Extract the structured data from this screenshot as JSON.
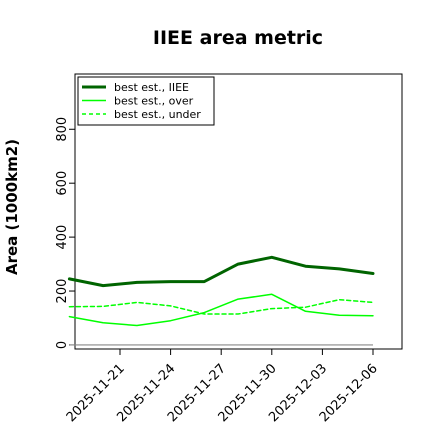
{
  "chart_data": {
    "type": "line",
    "title": "IIEE area metric",
    "xlabel": "",
    "ylabel": "Area (1000km2)",
    "x": [
      "2025-11-18",
      "2025-11-20",
      "2025-11-22",
      "2025-11-24",
      "2025-11-26",
      "2025-11-28",
      "2025-11-30",
      "2025-12-02",
      "2025-12-04",
      "2025-12-06"
    ],
    "x_ticks": [
      "2025-11-21",
      "2025-11-24",
      "2025-11-27",
      "2025-11-30",
      "2025-12-03",
      "2025-12-06"
    ],
    "ylim": [
      -15,
      1005
    ],
    "y_ticks": [
      0,
      200,
      400,
      600,
      800
    ],
    "y_tick_labels": [
      "0",
      "200",
      "400",
      "600",
      "800"
    ],
    "grid": false,
    "legend_position": "top-left",
    "series": [
      {
        "name": "best est., IIEE",
        "color": "#006400",
        "style": "solid",
        "width": 3,
        "values": [
          245,
          220,
          232,
          235,
          235,
          300,
          325,
          292,
          282,
          265
        ]
      },
      {
        "name": "best est., over",
        "color": "#00ff00",
        "style": "solid",
        "width": 1.5,
        "values": [
          105,
          82,
          72,
          90,
          120,
          170,
          188,
          125,
          110,
          108
        ]
      },
      {
        "name": "best est., under",
        "color": "#00ff00",
        "style": "dashed",
        "width": 1.5,
        "values": [
          142,
          143,
          158,
          145,
          115,
          115,
          135,
          140,
          168,
          158
        ]
      }
    ],
    "zero_line": {
      "value": 0,
      "color": "#888888"
    }
  }
}
